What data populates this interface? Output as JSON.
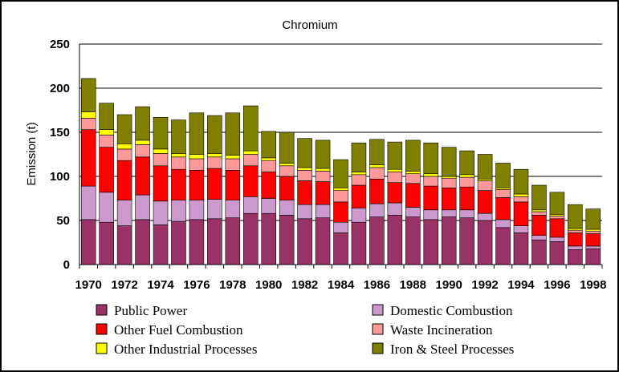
{
  "chart_data": {
    "type": "bar",
    "stacked": true,
    "title": "Chromium",
    "xlabel": "",
    "ylabel": "Emission (t)",
    "ylim": [
      0,
      250
    ],
    "yticks": [
      0,
      50,
      100,
      150,
      200,
      250
    ],
    "grid": true,
    "legend_position": "bottom",
    "categories": [
      "1970",
      "1971",
      "1972",
      "1973",
      "1974",
      "1975",
      "1976",
      "1977",
      "1978",
      "1979",
      "1980",
      "1981",
      "1982",
      "1983",
      "1984",
      "1985",
      "1986",
      "1987",
      "1988",
      "1989",
      "1990",
      "1991",
      "1992",
      "1993",
      "1994",
      "1995",
      "1996",
      "1997",
      "1998"
    ],
    "xtick_labels": [
      "1970",
      "1972",
      "1974",
      "1976",
      "1978",
      "1980",
      "1982",
      "1984",
      "1986",
      "1988",
      "1990",
      "1992",
      "1994",
      "1996",
      "1998"
    ],
    "series": [
      {
        "name": "Public Power",
        "color": "#993366",
        "values": [
          51,
          48,
          44,
          51,
          45,
          49,
          51,
          52,
          53,
          58,
          58,
          56,
          52,
          53,
          36,
          48,
          54,
          56,
          54,
          51,
          54,
          53,
          50,
          42,
          36,
          28,
          26,
          17,
          18
        ]
      },
      {
        "name": "Domestic Combustion",
        "color": "#CC99CC",
        "values": [
          38,
          34,
          29,
          28,
          27,
          24,
          22,
          22,
          20,
          19,
          17,
          17,
          16,
          15,
          12,
          16,
          15,
          14,
          11,
          11,
          8,
          9,
          8,
          9,
          8,
          5,
          5,
          4,
          3
        ]
      },
      {
        "name": "Other Fuel Combustion",
        "color": "#FF0000",
        "values": [
          64,
          51,
          45,
          43,
          40,
          35,
          34,
          35,
          34,
          35,
          30,
          27,
          27,
          26,
          23,
          26,
          28,
          23,
          27,
          27,
          25,
          26,
          26,
          25,
          27,
          23,
          21,
          15,
          14
        ]
      },
      {
        "name": "Waste Incineration",
        "color": "#FF9999",
        "values": [
          13,
          14,
          13,
          14,
          14,
          14,
          13,
          13,
          13,
          13,
          13,
          12,
          12,
          12,
          13,
          12,
          13,
          12,
          11,
          11,
          11,
          11,
          11,
          9,
          6,
          4,
          3,
          3,
          3
        ]
      },
      {
        "name": "Other Industrial Processes",
        "color": "#FFFF00",
        "values": [
          7,
          6,
          6,
          5,
          5,
          4,
          5,
          4,
          4,
          4,
          3,
          3,
          3,
          3,
          3,
          3,
          3,
          3,
          3,
          3,
          2,
          3,
          2,
          2,
          3,
          2,
          2,
          2,
          2
        ]
      },
      {
        "name": "Iron & Steel Processes",
        "color": "#808000",
        "values": [
          38,
          30,
          33,
          38,
          36,
          38,
          47,
          43,
          48,
          51,
          30,
          35,
          33,
          32,
          32,
          33,
          29,
          31,
          35,
          35,
          33,
          27,
          28,
          28,
          28,
          28,
          25,
          27,
          23
        ]
      }
    ]
  }
}
